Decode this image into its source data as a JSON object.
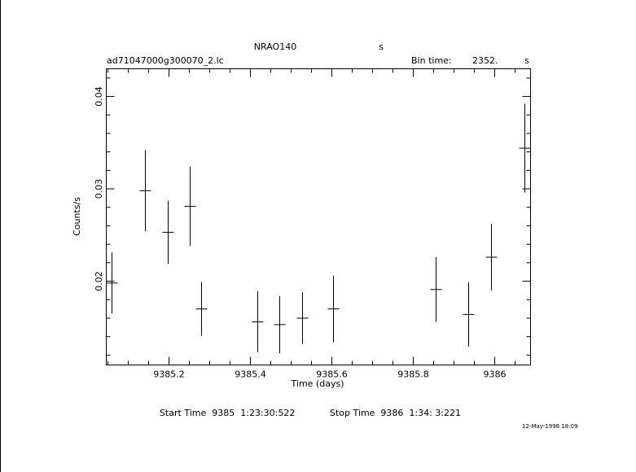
{
  "chart_data": {
    "type": "errorbar",
    "title": "NRAO140",
    "title_unit": "s",
    "filename": "ad71047000g300070_2.lc",
    "bin_time_label": "Bin time:",
    "bin_time": "2352.",
    "bin_time_unit": "s",
    "xlabel": "Time (days)",
    "ylabel": "Counts/s",
    "start_time": "Start Time  9385  1:23:30:522",
    "stop_time": "Stop Time  9386  1:34: 3:221",
    "date": "12-May-1998 18:09",
    "color": "#000000",
    "xlim": [
      9385.046,
      9386.088
    ],
    "ylim": [
      0.01093,
      0.043
    ],
    "xticks": [
      9385.2,
      9385.4,
      9385.6,
      9385.8,
      9386
    ],
    "yticks": [
      0.02,
      0.03,
      0.04
    ],
    "xminorticks": [
      9385.05,
      9385.1,
      9385.15,
      9385.25,
      9385.3,
      9385.35,
      9385.45,
      9385.5,
      9385.55,
      9385.65,
      9385.7,
      9385.75,
      9385.85,
      9385.9,
      9385.95,
      9386.05
    ],
    "yminorticks": [
      0.012,
      0.014,
      0.016,
      0.018,
      0.022,
      0.024,
      0.026,
      0.028,
      0.032,
      0.034,
      0.036,
      0.038,
      0.042
    ],
    "series": [
      {
        "x": [
          9385.06,
          9385.142,
          9385.198,
          9385.252,
          9385.28,
          9385.418,
          9385.472,
          9385.528,
          9385.604,
          9385.856,
          9385.936,
          9385.992,
          9386.074
        ],
        "values": [
          0.0198,
          0.0298,
          0.0253,
          0.0281,
          0.017,
          0.0156,
          0.0153,
          0.016,
          0.017,
          0.0191,
          0.0164,
          0.0226,
          0.0344
        ],
        "errors": [
          0.0033,
          0.0044,
          0.0034,
          0.0043,
          0.0029,
          0.0033,
          0.0031,
          0.0028,
          0.0036,
          0.0035,
          0.0035,
          0.0036,
          0.0048
        ],
        "xerr": [
          0.014,
          0.014,
          0.014,
          0.014,
          0.014,
          0.014,
          0.014,
          0.014,
          0.014,
          0.014,
          0.014,
          0.014,
          0.014
        ]
      }
    ]
  }
}
